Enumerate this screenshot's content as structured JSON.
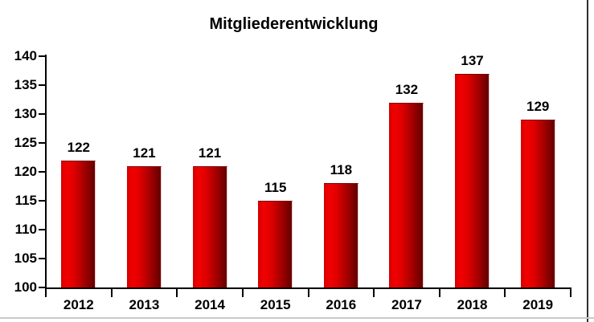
{
  "chart_data": {
    "type": "bar",
    "title": "Mitgliederentwicklung",
    "categories": [
      "2012",
      "2013",
      "2014",
      "2015",
      "2016",
      "2017",
      "2018",
      "2019"
    ],
    "values": [
      122,
      121,
      121,
      115,
      118,
      132,
      137,
      129
    ],
    "data_labels": [
      "122",
      "121",
      "121",
      "115",
      "118",
      "132",
      "137",
      "129"
    ],
    "xlabel": "",
    "ylabel": "",
    "ylim": [
      100,
      140
    ],
    "yticks": [
      100,
      105,
      110,
      115,
      120,
      125,
      130,
      135,
      140
    ],
    "grid": "off",
    "legend": "none",
    "bar_color_bright": "#f20000",
    "bar_color_dark": "#620000",
    "axis_color": "#000000",
    "label_color": "#000000"
  },
  "frame": {
    "right_border_color": "#2f2f2f",
    "bottom_line_color": "#c9c9c9"
  }
}
